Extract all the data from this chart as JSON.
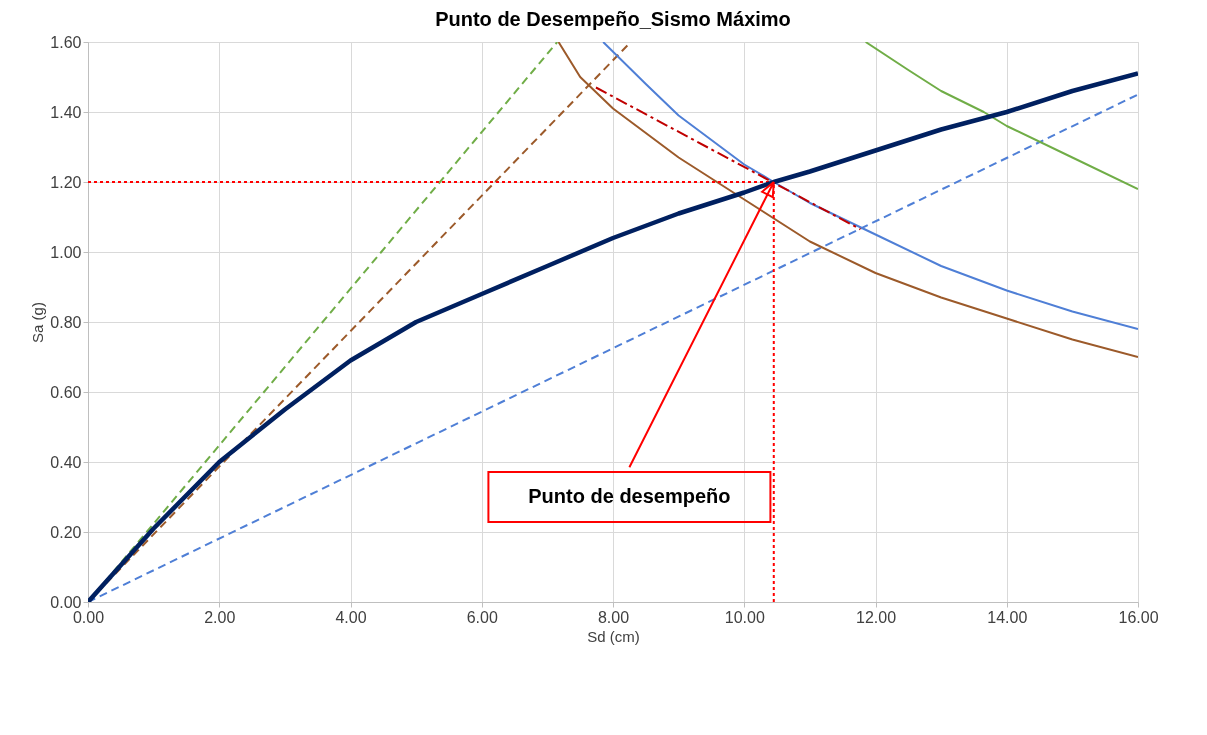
{
  "chart_data": {
    "type": "line",
    "title": "Punto de Desempeño_Sismo Máximo",
    "xlabel": "Sd (cm)",
    "ylabel": "Sa (g)",
    "xlim": [
      0,
      16
    ],
    "xticks": [
      {
        "value": 0,
        "label": "0.00"
      },
      {
        "value": 2,
        "label": "2.00"
      },
      {
        "value": 4,
        "label": "4.00"
      },
      {
        "value": 6,
        "label": "6.00"
      },
      {
        "value": 8,
        "label": "8.00"
      },
      {
        "value": 10,
        "label": "10.00"
      },
      {
        "value": 12,
        "label": "12.00"
      },
      {
        "value": 14,
        "label": "14.00"
      },
      {
        "value": 16,
        "label": "16.00"
      }
    ],
    "ylim": [
      0,
      1.6
    ],
    "yticks": [
      {
        "value": 0,
        "label": "0.00"
      },
      {
        "value": 0.2,
        "label": "0.20"
      },
      {
        "value": 0.4,
        "label": "0.40"
      },
      {
        "value": 0.6,
        "label": "0.60"
      },
      {
        "value": 0.8,
        "label": "0.80"
      },
      {
        "value": 1.0,
        "label": "1.00"
      },
      {
        "value": 1.2,
        "label": "1.20"
      },
      {
        "value": 1.4,
        "label": "1.40"
      },
      {
        "value": 1.6,
        "label": "1.60"
      }
    ],
    "grid": true,
    "marker": "none",
    "series": [
      {
        "color": "#70ad47",
        "line_style": "dashed",
        "x": [
          0,
          7.15
        ],
        "values": [
          0,
          1.6
        ]
      },
      {
        "color": "#9c5a2a",
        "line_style": "dashed",
        "x": [
          0,
          8.27
        ],
        "values": [
          0,
          1.6
        ]
      },
      {
        "color": "#4f7fd6",
        "line_style": "dashed",
        "x": [
          0,
          16
        ],
        "values": [
          0,
          1.45
        ]
      },
      {
        "color": "#70ad47",
        "line_style": "solid",
        "x": [
          11.85,
          12.5,
          13,
          13.65,
          14,
          15,
          16
        ],
        "values": [
          1.6,
          1.52,
          1.46,
          1.4,
          1.36,
          1.27,
          1.18
        ]
      },
      {
        "color": "#9c5a2a",
        "line_style": "solid",
        "x": [
          7.17,
          7.5,
          8,
          9,
          10,
          11,
          12,
          13,
          14,
          15,
          16
        ],
        "values": [
          1.6,
          1.5,
          1.41,
          1.27,
          1.15,
          1.03,
          0.94,
          0.87,
          0.81,
          0.75,
          0.7
        ]
      },
      {
        "color": "#4f7fd6",
        "line_style": "solid",
        "x": [
          7.85,
          8.5,
          9,
          10,
          10.45,
          11,
          12,
          13,
          14,
          15,
          16
        ],
        "values": [
          1.6,
          1.48,
          1.39,
          1.25,
          1.2,
          1.14,
          1.05,
          0.96,
          0.89,
          0.83,
          0.78
        ]
      },
      {
        "color": "#c00000",
        "line_style": "dashdot",
        "x": [
          7.74,
          11.77
        ],
        "values": [
          1.47,
          1.065
        ]
      },
      {
        "color": "#ff0000",
        "line_style": "dotted",
        "x": [
          0,
          10.45
        ],
        "values": [
          1.2,
          1.2
        ]
      },
      {
        "color": "#ff0000",
        "line_style": "dotted",
        "x": [
          10.45,
          10.45
        ],
        "values": [
          0,
          1.2
        ]
      },
      {
        "color": "#002060",
        "line_style": "solid",
        "x": [
          0,
          1,
          2,
          3,
          4,
          5,
          6,
          7,
          8,
          9,
          10,
          10.45,
          11,
          12,
          13,
          14,
          15,
          16
        ],
        "values": [
          0,
          0.21,
          0.4,
          0.55,
          0.69,
          0.8,
          0.88,
          0.96,
          1.04,
          1.11,
          1.17,
          1.2,
          1.23,
          1.29,
          1.35,
          1.4,
          1.46,
          1.51
        ]
      }
    ],
    "annotations": [
      {
        "text": "Punto de desempeño",
        "x": 10.45,
        "y": 1.2
      }
    ]
  }
}
